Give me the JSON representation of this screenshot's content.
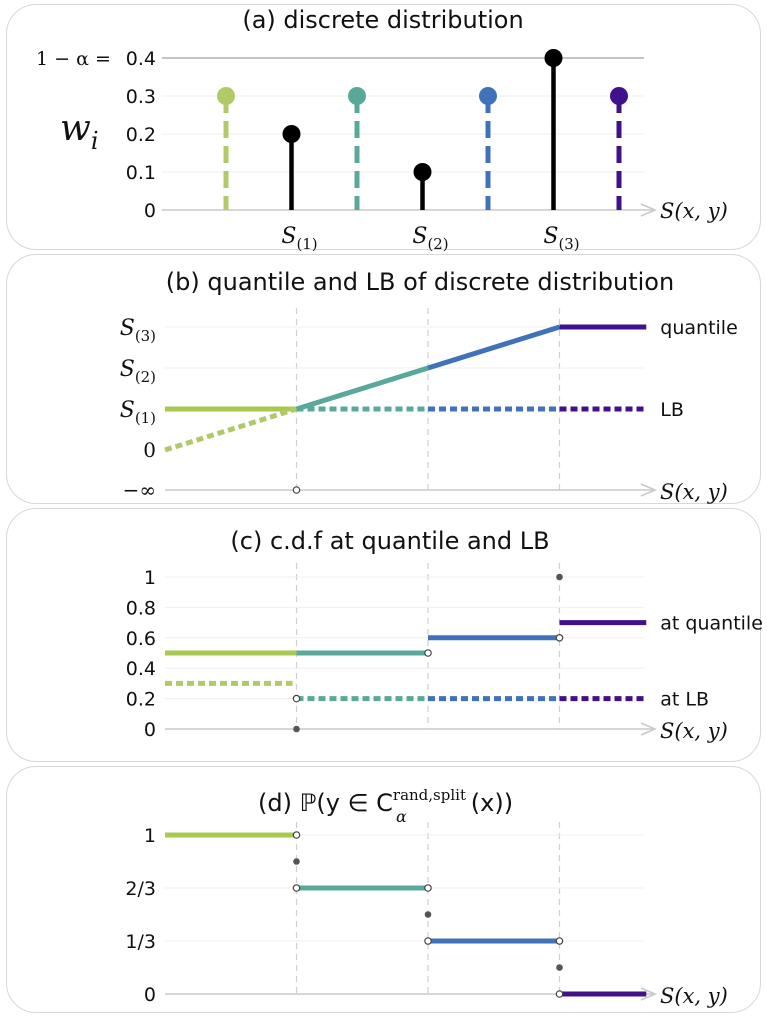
{
  "chart_data": [
    {
      "type": "stem",
      "title": "(a) discrete distribution",
      "ylabel": "w_i",
      "xlabel": "S(x, y)",
      "threshold_label": "1 − α =",
      "threshold": 0.4,
      "y_ticks": [
        "0",
        "0.1",
        "0.2",
        "0.3",
        "0.4"
      ],
      "ylim": [
        0,
        0.4
      ],
      "points": [
        {
          "x": 0,
          "w": 0.3,
          "style": "dashed",
          "color": "#b2c96a"
        },
        {
          "x": 1,
          "w": 0.2,
          "style": "solid",
          "color": "#000000",
          "label": "S(1)"
        },
        {
          "x": 2,
          "w": 0.3,
          "style": "dashed",
          "color": "#5aa89a"
        },
        {
          "x": 3,
          "w": 0.1,
          "style": "solid",
          "color": "#000000",
          "label": "S(2)"
        },
        {
          "x": 4,
          "w": 0.3,
          "style": "dashed",
          "color": "#3f72b8"
        },
        {
          "x": 5,
          "w": 0.4,
          "style": "solid",
          "color": "#000000",
          "label": "S(3)"
        },
        {
          "x": 6,
          "w": 0.3,
          "style": "dashed",
          "color": "#40118a"
        }
      ]
    },
    {
      "type": "line",
      "title": "(b) quantile and LB of discrete distribution",
      "xlabel": "S(x, y)",
      "y_ticks": [
        "−∞",
        "0",
        "S(1)",
        "S(2)",
        "S(3)"
      ],
      "series": [
        {
          "name": "quantile",
          "segments": [
            {
              "from": [
                0,
                2
              ],
              "to": [
                1,
                2
              ],
              "color": "#a9c850"
            },
            {
              "from": [
                1,
                2
              ],
              "to": [
                2,
                3
              ],
              "color": "#5aa89a"
            },
            {
              "from": [
                2,
                3
              ],
              "to": [
                3,
                4
              ],
              "color": "#3f72b8"
            },
            {
              "from": [
                3,
                4
              ],
              "to": [
                3.66,
                4
              ],
              "color": "#40118a"
            }
          ]
        },
        {
          "name": "LB",
          "dotted": true,
          "segments": [
            {
              "from": [
                0,
                1
              ],
              "to": [
                1,
                2
              ],
              "color": "#b2c96a"
            },
            {
              "from": [
                1,
                2
              ],
              "to": [
                2,
                2
              ],
              "color": "#5aa89a"
            },
            {
              "from": [
                2,
                2
              ],
              "to": [
                3,
                2
              ],
              "color": "#3f72b8"
            },
            {
              "from": [
                3,
                2
              ],
              "to": [
                3.66,
                2
              ],
              "color": "#40118a"
            }
          ]
        }
      ],
      "markers": [
        {
          "x": 1,
          "y": 0,
          "kind": "open"
        }
      ]
    },
    {
      "type": "step",
      "title": "(c) c.d.f at quantile and LB",
      "xlabel": "S(x, y)",
      "y_ticks": [
        "0",
        "0.2",
        "0.4",
        "0.6",
        "0.8",
        "1"
      ],
      "ylim": [
        0,
        1
      ],
      "series": [
        {
          "name": "at quantile",
          "segments": [
            {
              "x0": 0,
              "x1": 1,
              "y": 0.5,
              "color": "#a9c850"
            },
            {
              "x0": 1,
              "x1": 2,
              "y": 0.5,
              "color": "#5aa89a"
            },
            {
              "x0": 2,
              "x1": 3,
              "y": 0.6,
              "color": "#3f72b8"
            },
            {
              "x0": 3,
              "x1": 3.66,
              "y": 0.7,
              "color": "#40118a"
            }
          ]
        },
        {
          "name": "at LB",
          "dotted": true,
          "segments": [
            {
              "x0": 0,
              "x1": 0.97,
              "y": 0.3,
              "color": "#b2c96a"
            },
            {
              "x0": 1,
              "x1": 2,
              "y": 0.2,
              "color": "#5aa89a"
            },
            {
              "x0": 2,
              "x1": 3,
              "y": 0.2,
              "color": "#3f72b8"
            },
            {
              "x0": 3,
              "x1": 3.66,
              "y": 0.2,
              "color": "#40118a"
            }
          ]
        }
      ],
      "markers": [
        {
          "x": 1,
          "y": 0.2,
          "kind": "open"
        },
        {
          "x": 1,
          "y": 0,
          "kind": "filled"
        },
        {
          "x": 2,
          "y": 0.5,
          "kind": "open"
        },
        {
          "x": 3,
          "y": 0.6,
          "kind": "open"
        },
        {
          "x": 3,
          "y": 1,
          "kind": "filled"
        }
      ]
    },
    {
      "type": "step",
      "title": "(d) ℙ(y ∈ C",
      "title_sup": "rand,split",
      "title_sub": "α",
      "title_tail": "(x))",
      "xlabel": "S(x, y)",
      "y_ticks": [
        "0",
        "1/3",
        "2/3",
        "1"
      ],
      "ylim": [
        0,
        1
      ],
      "series": [
        {
          "segments": [
            {
              "x0": 0,
              "x1": 1,
              "y": 1,
              "color": "#a9c850"
            },
            {
              "x0": 1,
              "x1": 2,
              "y": 0.6667,
              "color": "#5aa89a"
            },
            {
              "x0": 2,
              "x1": 3,
              "y": 0.3333,
              "color": "#3f72b8"
            },
            {
              "x0": 3,
              "x1": 3.66,
              "y": 0,
              "color": "#40118a"
            }
          ]
        }
      ],
      "markers": [
        {
          "x": 1,
          "y": 1,
          "kind": "open"
        },
        {
          "x": 1,
          "y": 0.6667,
          "kind": "open"
        },
        {
          "x": 1,
          "y": 0.8333,
          "kind": "filled"
        },
        {
          "x": 2,
          "y": 0.6667,
          "kind": "open"
        },
        {
          "x": 2,
          "y": 0.3333,
          "kind": "open"
        },
        {
          "x": 2,
          "y": 0.5,
          "kind": "filled"
        },
        {
          "x": 3,
          "y": 0.3333,
          "kind": "open"
        },
        {
          "x": 3,
          "y": 0,
          "kind": "open"
        },
        {
          "x": 3,
          "y": 0.1667,
          "kind": "filled"
        }
      ]
    }
  ]
}
